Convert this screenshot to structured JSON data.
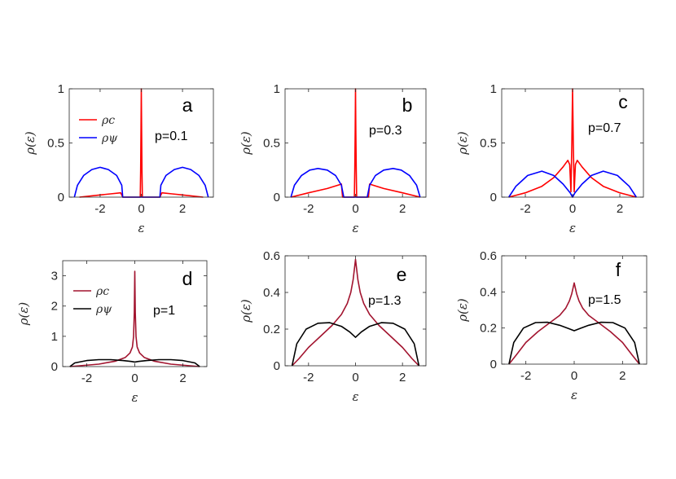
{
  "figure": {
    "colors": {
      "rho_c_top": "#ff0000",
      "rho_psi_top": "#0000ff",
      "rho_c_bottom": "#a2142f",
      "rho_psi_bottom": "#000000"
    }
  },
  "chart_data": [
    {
      "type": "line",
      "panel_letter": "a",
      "p_label": "p=0.1",
      "xlabel": "ε",
      "ylabel": "ρ(ε)",
      "xlim": [
        -3.5,
        3.5
      ],
      "ylim": [
        0,
        1
      ],
      "xticks": [
        "-2",
        "0",
        "2"
      ],
      "yticks": [
        "0",
        "0.5",
        "1"
      ],
      "legend": {
        "placement": "top-left",
        "entries": [
          "ρc",
          "ρψ"
        ]
      },
      "series": [
        {
          "key": "c",
          "color": "#ff0000",
          "x": [
            -3.0,
            -2.0,
            -1.5,
            -1.0,
            -0.9,
            -0.05,
            -0.03,
            -0.015,
            0,
            0.015,
            0.03,
            0.05,
            0.9,
            1.0,
            1.5,
            2.0,
            3.0
          ],
          "y": [
            0,
            0.02,
            0.03,
            0.04,
            0,
            0,
            0.25,
            0.6,
            1.0,
            0.6,
            0.25,
            0,
            0,
            0.04,
            0.03,
            0.02,
            0
          ]
        },
        {
          "key": "psi",
          "color": "#0000ff",
          "x": [
            -3.25,
            -3.1,
            -2.8,
            -2.4,
            -2.0,
            -1.6,
            -1.2,
            -0.95,
            -0.9,
            0.9,
            0.95,
            1.2,
            1.6,
            2.0,
            2.4,
            2.8,
            3.1,
            3.25
          ],
          "y": [
            0,
            0.11,
            0.2,
            0.255,
            0.275,
            0.255,
            0.2,
            0.11,
            0,
            0,
            0.11,
            0.2,
            0.255,
            0.275,
            0.255,
            0.2,
            0.11,
            0
          ]
        }
      ]
    },
    {
      "type": "line",
      "panel_letter": "b",
      "p_label": "p=0.3",
      "xlabel": "ε",
      "ylabel": "ρ(ε)",
      "xlim": [
        -3,
        3
      ],
      "ylim": [
        0,
        1
      ],
      "xticks": [
        "-2",
        "0",
        "2"
      ],
      "yticks": [
        "0",
        "0.5",
        "1"
      ],
      "series": [
        {
          "key": "c",
          "color": "#ff0000",
          "x": [
            -2.75,
            -2.0,
            -1.2,
            -0.6,
            -0.55,
            -0.05,
            -0.03,
            -0.015,
            0,
            0.015,
            0.03,
            0.05,
            0.55,
            0.6,
            1.2,
            2.0,
            2.75
          ],
          "y": [
            0,
            0.04,
            0.08,
            0.12,
            0,
            0,
            0.25,
            0.6,
            1.0,
            0.6,
            0.25,
            0,
            0,
            0.12,
            0.08,
            0.04,
            0
          ]
        },
        {
          "key": "psi",
          "color": "#0000ff",
          "x": [
            -2.75,
            -2.6,
            -2.3,
            -1.95,
            -1.6,
            -1.2,
            -0.85,
            -0.6,
            -0.5,
            0.5,
            0.6,
            0.85,
            1.2,
            1.6,
            1.95,
            2.3,
            2.6,
            2.75
          ],
          "y": [
            0,
            0.11,
            0.2,
            0.25,
            0.265,
            0.25,
            0.2,
            0.11,
            0,
            0,
            0.11,
            0.2,
            0.25,
            0.265,
            0.25,
            0.2,
            0.11,
            0
          ]
        }
      ]
    },
    {
      "type": "line",
      "panel_letter": "c",
      "p_label": "p=0.7",
      "xlabel": "ε",
      "ylabel": "ρ(ε)",
      "xlim": [
        -3,
        3
      ],
      "ylim": [
        0,
        1
      ],
      "xticks": [
        "-2",
        "0",
        "2"
      ],
      "yticks": [
        "0",
        "0.5",
        "1"
      ],
      "series": [
        {
          "key": "c",
          "color": "#ff0000",
          "x": [
            -2.7,
            -2.0,
            -1.3,
            -0.8,
            -0.4,
            -0.2,
            -0.12,
            -0.07,
            -0.03,
            0,
            0.03,
            0.07,
            0.12,
            0.2,
            0.4,
            0.8,
            1.3,
            2.0,
            2.7
          ],
          "y": [
            0,
            0.04,
            0.1,
            0.18,
            0.28,
            0.34,
            0.3,
            0.05,
            0.5,
            1.0,
            0.5,
            0.05,
            0.3,
            0.34,
            0.28,
            0.18,
            0.1,
            0.04,
            0
          ]
        },
        {
          "key": "psi",
          "color": "#0000ff",
          "x": [
            -2.7,
            -2.4,
            -1.9,
            -1.3,
            -0.8,
            -0.4,
            -0.1,
            0,
            0.1,
            0.4,
            0.8,
            1.3,
            1.9,
            2.4,
            2.7
          ],
          "y": [
            0,
            0.1,
            0.2,
            0.24,
            0.2,
            0.12,
            0.04,
            0,
            0.04,
            0.12,
            0.2,
            0.24,
            0.2,
            0.1,
            0
          ]
        }
      ]
    },
    {
      "type": "line",
      "panel_letter": "d",
      "p_label": "p=1",
      "xlabel": "ε",
      "ylabel": "ρ(ε)",
      "xlim": [
        -3,
        3
      ],
      "ylim": [
        0,
        3.5
      ],
      "xticks": [
        "-2",
        "0",
        "2"
      ],
      "yticks": [
        "0",
        "1",
        "2",
        "3"
      ],
      "legend": {
        "placement": "top-left",
        "entries": [
          "ρc",
          "ρψ"
        ]
      },
      "series": [
        {
          "key": "c",
          "color": "#a2142f",
          "x": [
            -2.7,
            -1.5,
            -0.8,
            -0.4,
            -0.2,
            -0.1,
            -0.05,
            -0.02,
            0,
            0.02,
            0.05,
            0.1,
            0.2,
            0.4,
            0.8,
            1.5,
            2.7
          ],
          "y": [
            0,
            0.08,
            0.18,
            0.3,
            0.45,
            0.65,
            1.0,
            1.8,
            3.15,
            1.8,
            1.0,
            0.65,
            0.45,
            0.3,
            0.18,
            0.08,
            0
          ]
        },
        {
          "key": "psi",
          "color": "#000000",
          "x": [
            -2.7,
            -2.5,
            -2.0,
            -1.5,
            -1.0,
            -0.5,
            -0.15,
            0,
            0.15,
            0.5,
            1.0,
            1.5,
            2.0,
            2.5,
            2.7
          ],
          "y": [
            0,
            0.12,
            0.2,
            0.23,
            0.23,
            0.2,
            0.17,
            0.15,
            0.17,
            0.2,
            0.23,
            0.23,
            0.2,
            0.12,
            0
          ]
        }
      ]
    },
    {
      "type": "line",
      "panel_letter": "e",
      "p_label": "p=1.3",
      "xlabel": "ε",
      "ylabel": "ρ(ε)",
      "xlim": [
        -3,
        3
      ],
      "ylim": [
        0,
        0.6
      ],
      "xticks": [
        "-2",
        "0",
        "2"
      ],
      "yticks": [
        "0",
        "0.2",
        "0.4",
        "0.6"
      ],
      "series": [
        {
          "key": "c",
          "color": "#a2142f",
          "x": [
            -2.7,
            -2.4,
            -2.0,
            -1.5,
            -1.0,
            -0.6,
            -0.35,
            -0.2,
            -0.1,
            0,
            0.1,
            0.2,
            0.35,
            0.6,
            1.0,
            1.5,
            2.0,
            2.4,
            2.7
          ],
          "y": [
            0,
            0.04,
            0.1,
            0.16,
            0.22,
            0.28,
            0.34,
            0.4,
            0.47,
            0.58,
            0.47,
            0.4,
            0.34,
            0.28,
            0.22,
            0.16,
            0.1,
            0.04,
            0
          ]
        },
        {
          "key": "psi",
          "color": "#000000",
          "x": [
            -2.7,
            -2.5,
            -2.1,
            -1.6,
            -1.1,
            -0.6,
            -0.25,
            0,
            0.25,
            0.6,
            1.1,
            1.6,
            2.1,
            2.5,
            2.7
          ],
          "y": [
            0,
            0.12,
            0.2,
            0.232,
            0.235,
            0.215,
            0.185,
            0.155,
            0.185,
            0.215,
            0.235,
            0.232,
            0.2,
            0.12,
            0
          ]
        }
      ]
    },
    {
      "type": "line",
      "panel_letter": "f",
      "p_label": "p=1.5",
      "xlabel": "ε",
      "ylabel": "ρ(ε)",
      "xlim": [
        -3,
        3
      ],
      "ylim": [
        0,
        0.6
      ],
      "xticks": [
        "-2",
        "0",
        "2"
      ],
      "yticks": [
        "0",
        "0.2",
        "0.4",
        "0.6"
      ],
      "series": [
        {
          "key": "c",
          "color": "#a2142f",
          "x": [
            -2.7,
            -2.4,
            -2.0,
            -1.5,
            -1.0,
            -0.6,
            -0.35,
            -0.2,
            -0.1,
            0,
            0.1,
            0.2,
            0.35,
            0.6,
            1.0,
            1.5,
            2.0,
            2.4,
            2.7
          ],
          "y": [
            0,
            0.05,
            0.12,
            0.18,
            0.23,
            0.27,
            0.31,
            0.35,
            0.39,
            0.45,
            0.39,
            0.35,
            0.31,
            0.27,
            0.23,
            0.18,
            0.12,
            0.05,
            0
          ]
        },
        {
          "key": "psi",
          "color": "#000000",
          "x": [
            -2.7,
            -2.5,
            -2.1,
            -1.6,
            -1.1,
            -0.6,
            -0.25,
            0,
            0.25,
            0.6,
            1.1,
            1.6,
            2.1,
            2.5,
            2.7
          ],
          "y": [
            0,
            0.12,
            0.2,
            0.23,
            0.232,
            0.215,
            0.198,
            0.185,
            0.198,
            0.215,
            0.232,
            0.23,
            0.2,
            0.12,
            0
          ]
        }
      ]
    }
  ]
}
